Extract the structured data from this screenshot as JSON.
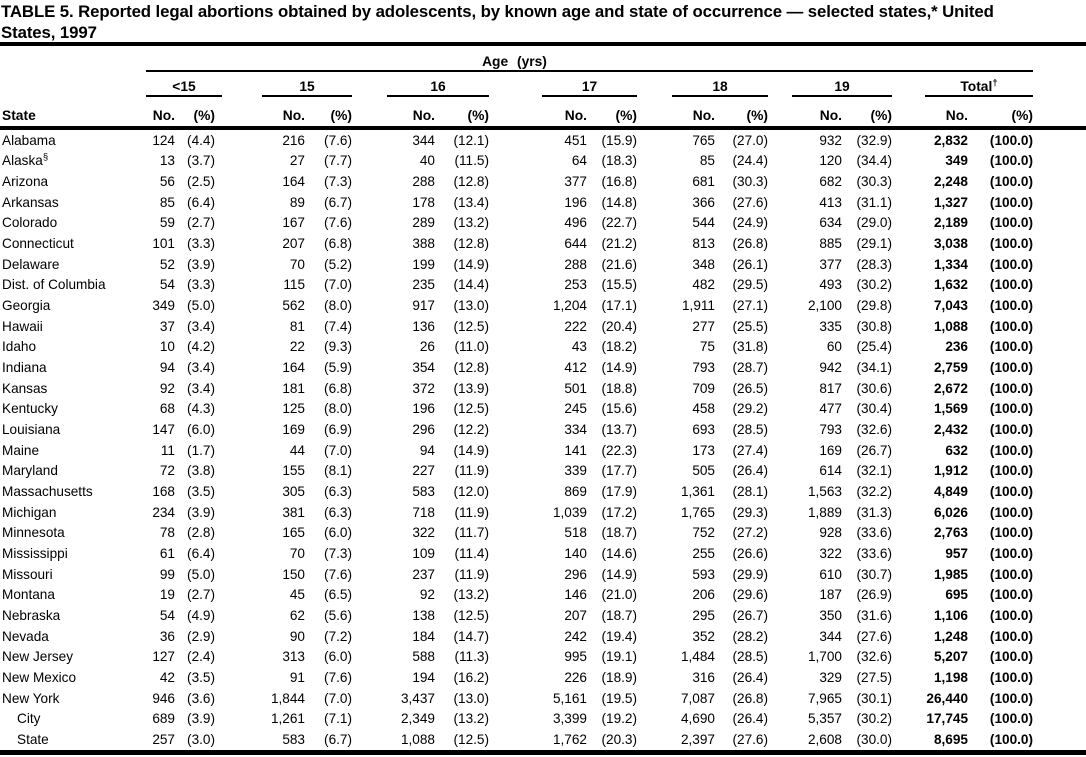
{
  "title": {
    "line1": "TABLE 5. Reported legal abortions obtained by adolescents, by known age and state of occurrence — selected states,* United",
    "line2": "States, 1997"
  },
  "table": {
    "age_span_label": "Age (yrs)",
    "state_header": "State",
    "groups": [
      {
        "label": "<15",
        "sup": ""
      },
      {
        "label": "15",
        "sup": ""
      },
      {
        "label": "16",
        "sup": ""
      },
      {
        "label": "17",
        "sup": ""
      },
      {
        "label": "18",
        "sup": ""
      },
      {
        "label": "19",
        "sup": ""
      },
      {
        "label": "Total",
        "sup": "†"
      }
    ],
    "subheaders": {
      "no": "No.",
      "pct": "(%)"
    },
    "rows": [
      {
        "state": "Alabama",
        "sup": "",
        "indent": false,
        "values": [
          "124",
          "(4.4)",
          "216",
          "(7.6)",
          "344",
          "(12.1)",
          "451",
          "(15.9)",
          "765",
          "(27.0)",
          "932",
          "(32.9)",
          "2,832",
          "(100.0)"
        ]
      },
      {
        "state": "Alaska",
        "sup": "§",
        "indent": false,
        "values": [
          "13",
          "(3.7)",
          "27",
          "(7.7)",
          "40",
          "(11.5)",
          "64",
          "(18.3)",
          "85",
          "(24.4)",
          "120",
          "(34.4)",
          "349",
          "(100.0)"
        ]
      },
      {
        "state": "Arizona",
        "sup": "",
        "indent": false,
        "values": [
          "56",
          "(2.5)",
          "164",
          "(7.3)",
          "288",
          "(12.8)",
          "377",
          "(16.8)",
          "681",
          "(30.3)",
          "682",
          "(30.3)",
          "2,248",
          "(100.0)"
        ]
      },
      {
        "state": "Arkansas",
        "sup": "",
        "indent": false,
        "values": [
          "85",
          "(6.4)",
          "89",
          "(6.7)",
          "178",
          "(13.4)",
          "196",
          "(14.8)",
          "366",
          "(27.6)",
          "413",
          "(31.1)",
          "1,327",
          "(100.0)"
        ]
      },
      {
        "state": "Colorado",
        "sup": "",
        "indent": false,
        "values": [
          "59",
          "(2.7)",
          "167",
          "(7.6)",
          "289",
          "(13.2)",
          "496",
          "(22.7)",
          "544",
          "(24.9)",
          "634",
          "(29.0)",
          "2,189",
          "(100.0)"
        ]
      },
      {
        "state": "Connecticut",
        "sup": "",
        "indent": false,
        "values": [
          "101",
          "(3.3)",
          "207",
          "(6.8)",
          "388",
          "(12.8)",
          "644",
          "(21.2)",
          "813",
          "(26.8)",
          "885",
          "(29.1)",
          "3,038",
          "(100.0)"
        ]
      },
      {
        "state": "Delaware",
        "sup": "",
        "indent": false,
        "values": [
          "52",
          "(3.9)",
          "70",
          "(5.2)",
          "199",
          "(14.9)",
          "288",
          "(21.6)",
          "348",
          "(26.1)",
          "377",
          "(28.3)",
          "1,334",
          "(100.0)"
        ]
      },
      {
        "state": "Dist. of Columbia",
        "sup": "",
        "indent": false,
        "values": [
          "54",
          "(3.3)",
          "115",
          "(7.0)",
          "235",
          "(14.4)",
          "253",
          "(15.5)",
          "482",
          "(29.5)",
          "493",
          "(30.2)",
          "1,632",
          "(100.0)"
        ]
      },
      {
        "state": "Georgia",
        "sup": "",
        "indent": false,
        "values": [
          "349",
          "(5.0)",
          "562",
          "(8.0)",
          "917",
          "(13.0)",
          "1,204",
          "(17.1)",
          "1,911",
          "(27.1)",
          "2,100",
          "(29.8)",
          "7,043",
          "(100.0)"
        ]
      },
      {
        "state": "Hawaii",
        "sup": "",
        "indent": false,
        "values": [
          "37",
          "(3.4)",
          "81",
          "(7.4)",
          "136",
          "(12.5)",
          "222",
          "(20.4)",
          "277",
          "(25.5)",
          "335",
          "(30.8)",
          "1,088",
          "(100.0)"
        ]
      },
      {
        "state": "Idaho",
        "sup": "",
        "indent": false,
        "values": [
          "10",
          "(4.2)",
          "22",
          "(9.3)",
          "26",
          "(11.0)",
          "43",
          "(18.2)",
          "75",
          "(31.8)",
          "60",
          "(25.4)",
          "236",
          "(100.0)"
        ]
      },
      {
        "state": "Indiana",
        "sup": "",
        "indent": false,
        "values": [
          "94",
          "(3.4)",
          "164",
          "(5.9)",
          "354",
          "(12.8)",
          "412",
          "(14.9)",
          "793",
          "(28.7)",
          "942",
          "(34.1)",
          "2,759",
          "(100.0)"
        ]
      },
      {
        "state": "Kansas",
        "sup": "",
        "indent": false,
        "values": [
          "92",
          "(3.4)",
          "181",
          "(6.8)",
          "372",
          "(13.9)",
          "501",
          "(18.8)",
          "709",
          "(26.5)",
          "817",
          "(30.6)",
          "2,672",
          "(100.0)"
        ]
      },
      {
        "state": "Kentucky",
        "sup": "",
        "indent": false,
        "values": [
          "68",
          "(4.3)",
          "125",
          "(8.0)",
          "196",
          "(12.5)",
          "245",
          "(15.6)",
          "458",
          "(29.2)",
          "477",
          "(30.4)",
          "1,569",
          "(100.0)"
        ]
      },
      {
        "state": "Louisiana",
        "sup": "",
        "indent": false,
        "values": [
          "147",
          "(6.0)",
          "169",
          "(6.9)",
          "296",
          "(12.2)",
          "334",
          "(13.7)",
          "693",
          "(28.5)",
          "793",
          "(32.6)",
          "2,432",
          "(100.0)"
        ]
      },
      {
        "state": "Maine",
        "sup": "",
        "indent": false,
        "values": [
          "11",
          "(1.7)",
          "44",
          "(7.0)",
          "94",
          "(14.9)",
          "141",
          "(22.3)",
          "173",
          "(27.4)",
          "169",
          "(26.7)",
          "632",
          "(100.0)"
        ]
      },
      {
        "state": "Maryland",
        "sup": "",
        "indent": false,
        "values": [
          "72",
          "(3.8)",
          "155",
          "(8.1)",
          "227",
          "(11.9)",
          "339",
          "(17.7)",
          "505",
          "(26.4)",
          "614",
          "(32.1)",
          "1,912",
          "(100.0)"
        ]
      },
      {
        "state": "Massachusetts",
        "sup": "",
        "indent": false,
        "values": [
          "168",
          "(3.5)",
          "305",
          "(6.3)",
          "583",
          "(12.0)",
          "869",
          "(17.9)",
          "1,361",
          "(28.1)",
          "1,563",
          "(32.2)",
          "4,849",
          "(100.0)"
        ]
      },
      {
        "state": "Michigan",
        "sup": "",
        "indent": false,
        "values": [
          "234",
          "(3.9)",
          "381",
          "(6.3)",
          "718",
          "(11.9)",
          "1,039",
          "(17.2)",
          "1,765",
          "(29.3)",
          "1,889",
          "(31.3)",
          "6,026",
          "(100.0)"
        ]
      },
      {
        "state": "Minnesota",
        "sup": "",
        "indent": false,
        "values": [
          "78",
          "(2.8)",
          "165",
          "(6.0)",
          "322",
          "(11.7)",
          "518",
          "(18.7)",
          "752",
          "(27.2)",
          "928",
          "(33.6)",
          "2,763",
          "(100.0)"
        ]
      },
      {
        "state": "Mississippi",
        "sup": "",
        "indent": false,
        "values": [
          "61",
          "(6.4)",
          "70",
          "(7.3)",
          "109",
          "(11.4)",
          "140",
          "(14.6)",
          "255",
          "(26.6)",
          "322",
          "(33.6)",
          "957",
          "(100.0)"
        ]
      },
      {
        "state": "Missouri",
        "sup": "",
        "indent": false,
        "values": [
          "99",
          "(5.0)",
          "150",
          "(7.6)",
          "237",
          "(11.9)",
          "296",
          "(14.9)",
          "593",
          "(29.9)",
          "610",
          "(30.7)",
          "1,985",
          "(100.0)"
        ]
      },
      {
        "state": "Montana",
        "sup": "",
        "indent": false,
        "values": [
          "19",
          "(2.7)",
          "45",
          "(6.5)",
          "92",
          "(13.2)",
          "146",
          "(21.0)",
          "206",
          "(29.6)",
          "187",
          "(26.9)",
          "695",
          "(100.0)"
        ]
      },
      {
        "state": "Nebraska",
        "sup": "",
        "indent": false,
        "values": [
          "54",
          "(4.9)",
          "62",
          "(5.6)",
          "138",
          "(12.5)",
          "207",
          "(18.7)",
          "295",
          "(26.7)",
          "350",
          "(31.6)",
          "1,106",
          "(100.0)"
        ]
      },
      {
        "state": "Nevada",
        "sup": "",
        "indent": false,
        "values": [
          "36",
          "(2.9)",
          "90",
          "(7.2)",
          "184",
          "(14.7)",
          "242",
          "(19.4)",
          "352",
          "(28.2)",
          "344",
          "(27.6)",
          "1,248",
          "(100.0)"
        ]
      },
      {
        "state": "New Jersey",
        "sup": "",
        "indent": false,
        "values": [
          "127",
          "(2.4)",
          "313",
          "(6.0)",
          "588",
          "(11.3)",
          "995",
          "(19.1)",
          "1,484",
          "(28.5)",
          "1,700",
          "(32.6)",
          "5,207",
          "(100.0)"
        ]
      },
      {
        "state": "New Mexico",
        "sup": "",
        "indent": false,
        "values": [
          "42",
          "(3.5)",
          "91",
          "(7.6)",
          "194",
          "(16.2)",
          "226",
          "(18.9)",
          "316",
          "(26.4)",
          "329",
          "(27.5)",
          "1,198",
          "(100.0)"
        ]
      },
      {
        "state": "New York",
        "sup": "",
        "indent": false,
        "values": [
          "946",
          "(3.6)",
          "1,844",
          "(7.0)",
          "3,437",
          "(13.0)",
          "5,161",
          "(19.5)",
          "7,087",
          "(26.8)",
          "7,965",
          "(30.1)",
          "26,440",
          "(100.0)"
        ]
      },
      {
        "state": "City",
        "sup": "",
        "indent": true,
        "values": [
          "689",
          "(3.9)",
          "1,261",
          "(7.1)",
          "2,349",
          "(13.2)",
          "3,399",
          "(19.2)",
          "4,690",
          "(26.4)",
          "5,357",
          "(30.2)",
          "17,745",
          "(100.0)"
        ]
      },
      {
        "state": "State",
        "sup": "",
        "indent": true,
        "values": [
          "257",
          "(3.0)",
          "583",
          "(6.7)",
          "1,088",
          "(12.5)",
          "1,762",
          "(20.3)",
          "2,397",
          "(27.6)",
          "2,608",
          "(30.0)",
          "8,695",
          "(100.0)"
        ]
      }
    ]
  }
}
